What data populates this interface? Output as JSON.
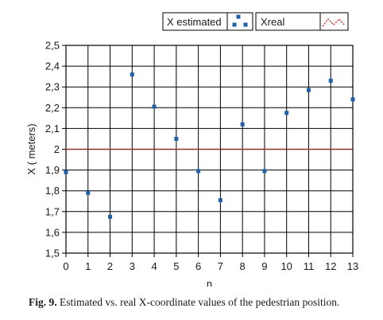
{
  "chart_data": {
    "type": "scatter",
    "xlabel": "n",
    "ylabel": "X ( meters)",
    "xlim": [
      0,
      13
    ],
    "ylim": [
      1.5,
      2.5
    ],
    "x_ticks": [
      0,
      1,
      2,
      3,
      4,
      5,
      6,
      7,
      8,
      9,
      10,
      11,
      12,
      13
    ],
    "y_ticks": [
      "1,5",
      "1,6",
      "1,7",
      "1,8",
      "1,9",
      "2",
      "2,1",
      "2,2",
      "2,3",
      "2,4",
      "2,5"
    ],
    "grid": true,
    "legend_position": "top-right",
    "series": [
      {
        "name": "X estimated",
        "color": "#1f5fa8",
        "marker": "square",
        "x": [
          0,
          1,
          2,
          3,
          4,
          5,
          6,
          7,
          8,
          9,
          10,
          11,
          12,
          13
        ],
        "y": [
          1.89,
          1.79,
          1.675,
          2.36,
          2.205,
          2.05,
          1.895,
          1.755,
          2.12,
          1.895,
          2.175,
          2.285,
          2.33,
          2.24
        ]
      },
      {
        "name": "Xreal",
        "color": "#d23a3a",
        "line_style": "dotted",
        "x": [
          0,
          13
        ],
        "y": [
          2.0,
          2.0
        ]
      }
    ]
  },
  "caption": {
    "label": "Fig. 9.",
    "text": "Estimated vs. real X-coordinate values of the pedestrian position."
  }
}
